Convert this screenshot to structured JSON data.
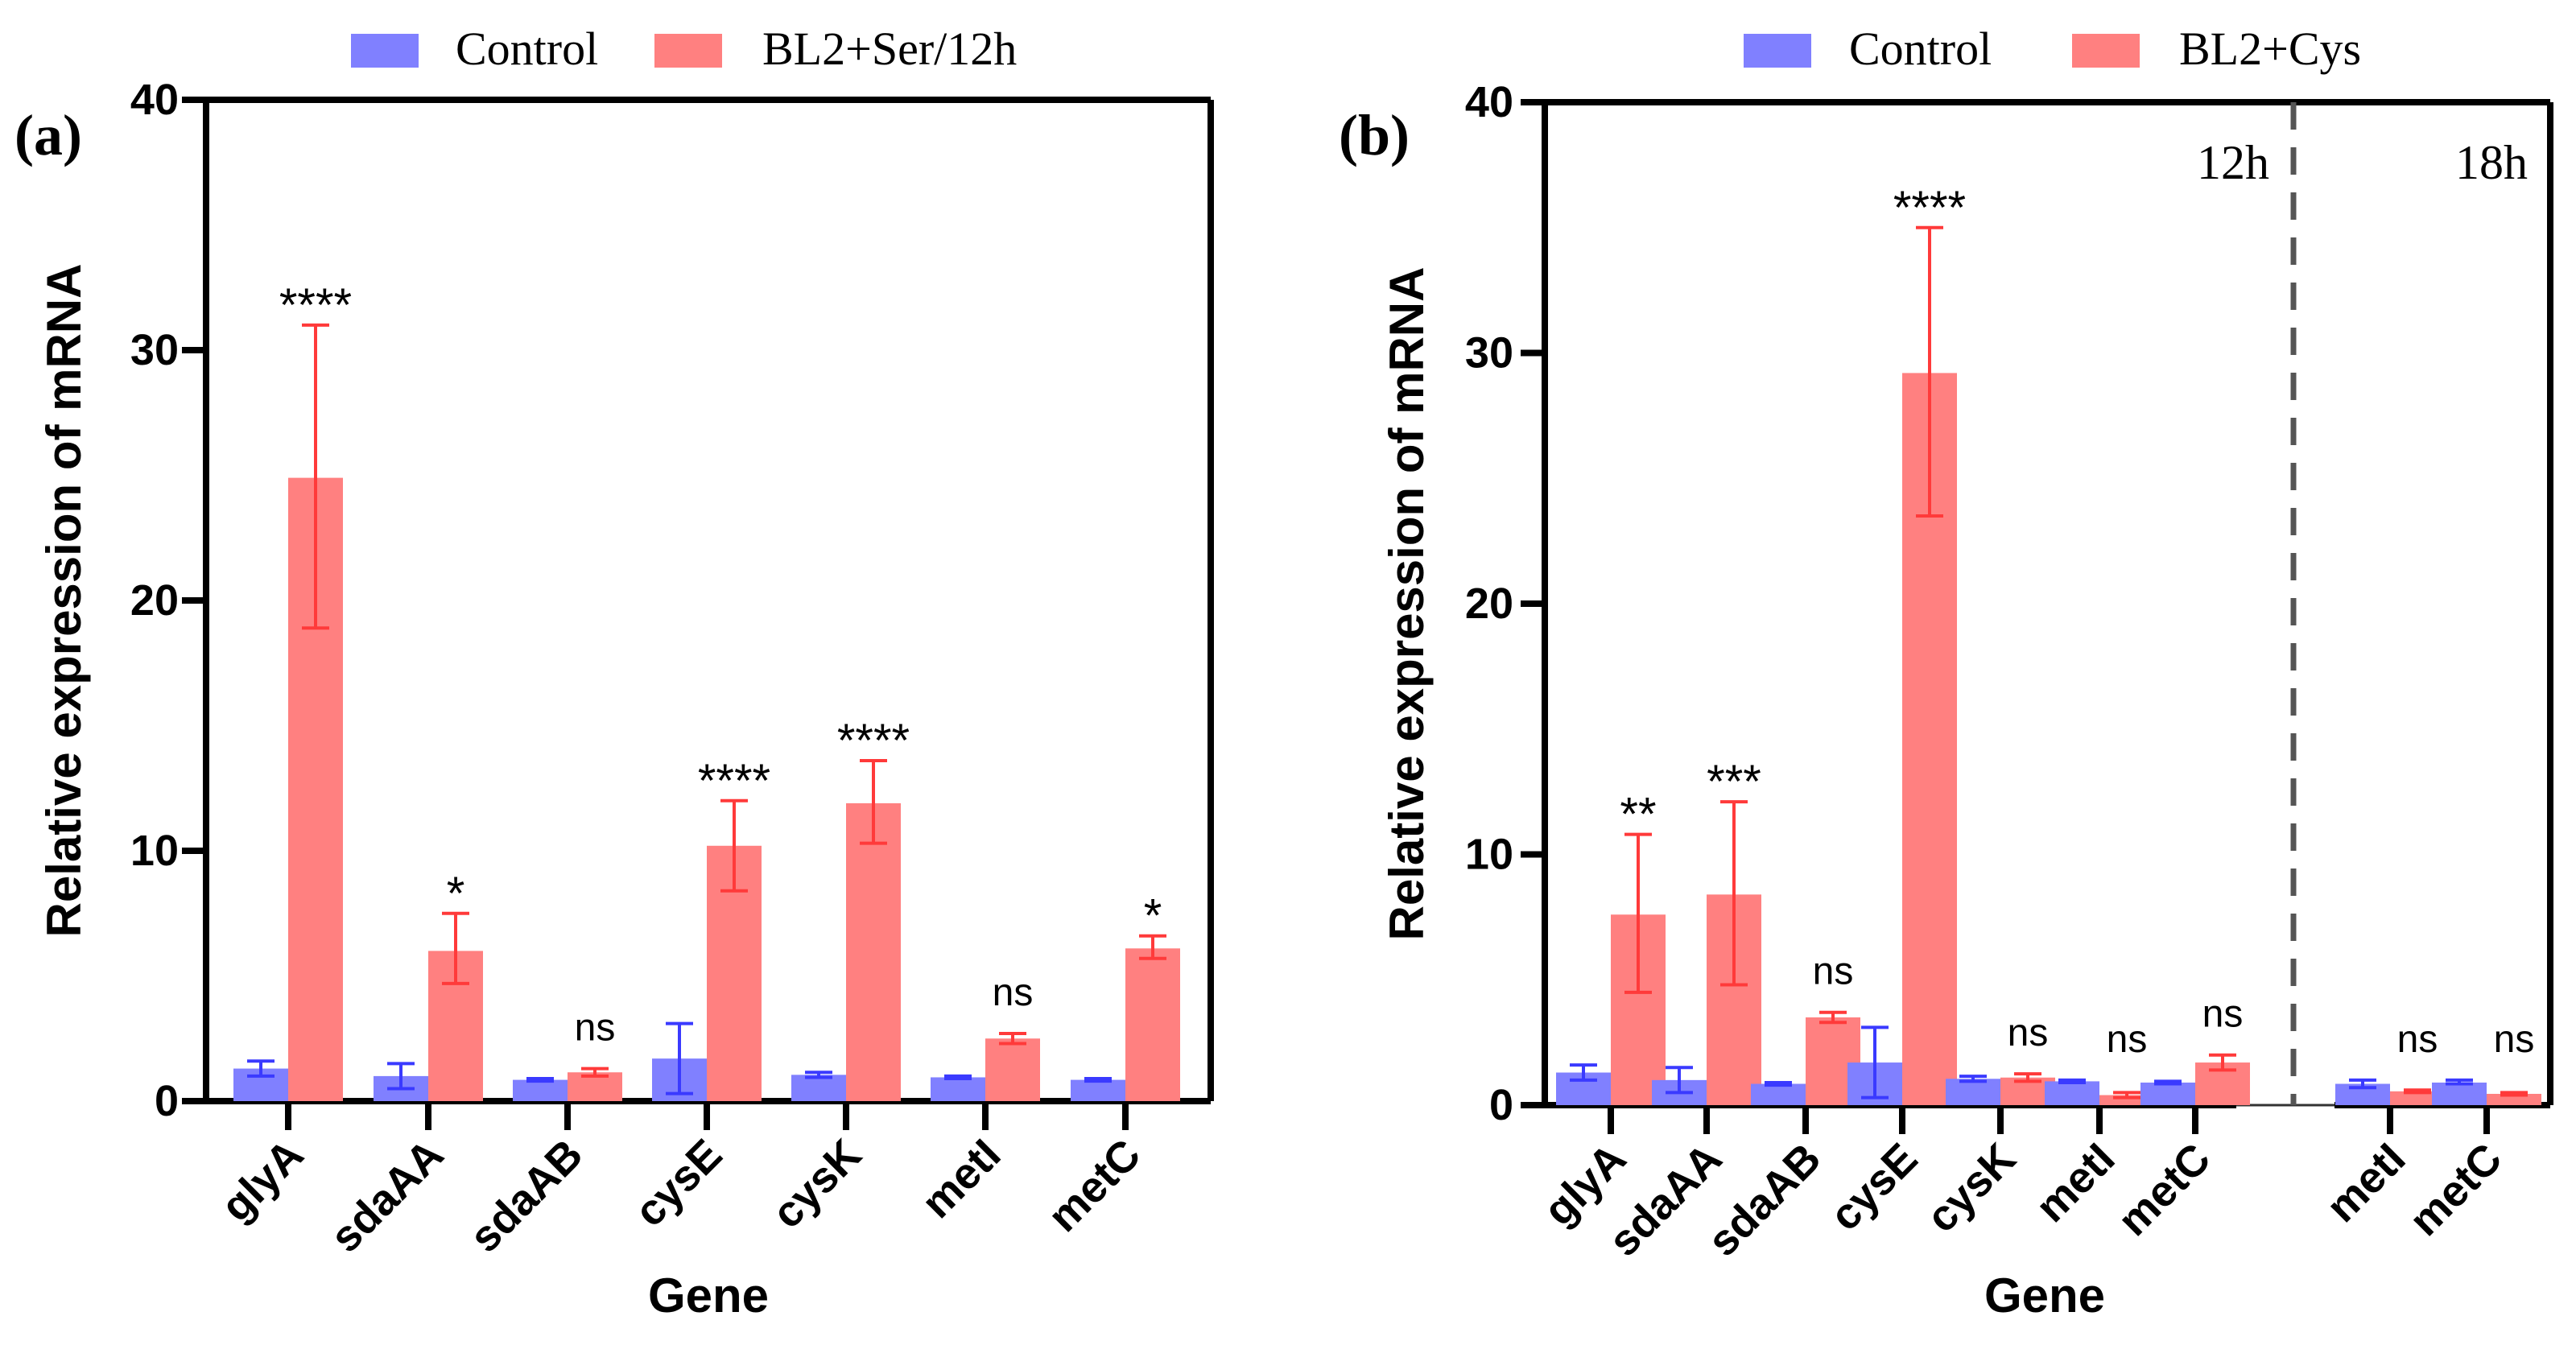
{
  "colors": {
    "control": "#8080ff",
    "treatment": "#ff8080",
    "control_err": "#3a3aff",
    "treatment_err": "#ff3a3a",
    "axis": "#000000",
    "divider": "#555555"
  },
  "chart_data": [
    {
      "type": "bar",
      "panel_label": "(a)",
      "legend": [
        "Control",
        "BL2+Ser/12h"
      ],
      "legend_position": "top",
      "xlabel": "Gene",
      "ylabel": "Relative expression of mRNA",
      "ylim": [
        0,
        40
      ],
      "yticks": [
        "0",
        "10",
        "20",
        "30",
        "40"
      ],
      "grid": false,
      "categories": [
        "glyA",
        "sdaAA",
        "sdaAB",
        "cysE",
        "cysK",
        "metI",
        "metC"
      ],
      "series": [
        {
          "name": "Control",
          "values": [
            1.3,
            1.0,
            0.85,
            1.7,
            1.05,
            0.95,
            0.85
          ],
          "err_low": [
            1.0,
            0.5,
            0.8,
            0.3,
            0.95,
            0.9,
            0.8
          ],
          "err_high": [
            1.6,
            1.5,
            0.9,
            3.1,
            1.15,
            1.0,
            0.9
          ]
        },
        {
          "name": "BL2+Ser/12h",
          "values": [
            24.9,
            6.0,
            1.15,
            10.2,
            11.9,
            2.5,
            6.1
          ],
          "err_low": [
            18.9,
            4.7,
            1.0,
            8.4,
            10.3,
            2.3,
            5.7
          ],
          "err_high": [
            31.0,
            7.5,
            1.3,
            12.0,
            13.6,
            2.7,
            6.6
          ]
        }
      ],
      "significance": [
        "****",
        "*",
        "ns",
        "****",
        "****",
        "ns",
        "*"
      ]
    },
    {
      "type": "bar",
      "panel_label": "(b)",
      "legend": [
        "Control",
        "BL2+Cys"
      ],
      "legend_position": "top",
      "xlabel": "Gene",
      "ylabel": "Relative expression of mRNA",
      "ylim": [
        0,
        40
      ],
      "yticks": [
        "0",
        "10",
        "20",
        "30",
        "40"
      ],
      "grid": false,
      "groups": [
        "12h",
        "18h"
      ],
      "categories": [
        "glyA",
        "sdaAA",
        "sdaAB",
        "cysE",
        "cysK",
        "metI",
        "metC",
        "metI",
        "metC"
      ],
      "category_group": [
        "12h",
        "12h",
        "12h",
        "12h",
        "12h",
        "12h",
        "12h",
        "18h",
        "18h"
      ],
      "series": [
        {
          "name": "Control",
          "values": [
            1.3,
            1.0,
            0.85,
            1.7,
            1.05,
            0.95,
            0.9,
            0.85,
            0.9
          ],
          "err_low": [
            1.0,
            0.5,
            0.8,
            0.3,
            0.95,
            0.9,
            0.85,
            0.7,
            0.85
          ],
          "err_high": [
            1.6,
            1.5,
            0.9,
            3.1,
            1.15,
            1.0,
            0.95,
            1.0,
            1.0
          ]
        },
        {
          "name": "BL2+Cys",
          "values": [
            7.6,
            8.4,
            3.5,
            29.2,
            1.1,
            0.4,
            1.7,
            0.55,
            0.45
          ],
          "err_low": [
            4.5,
            4.8,
            3.3,
            23.5,
            0.95,
            0.3,
            1.4,
            0.5,
            0.4
          ],
          "err_high": [
            10.8,
            12.1,
            3.7,
            35.0,
            1.25,
            0.5,
            2.0,
            0.6,
            0.5
          ]
        }
      ],
      "significance": [
        "**",
        "***",
        "ns",
        "****",
        "ns",
        "ns",
        "ns",
        "ns",
        "ns"
      ]
    }
  ]
}
